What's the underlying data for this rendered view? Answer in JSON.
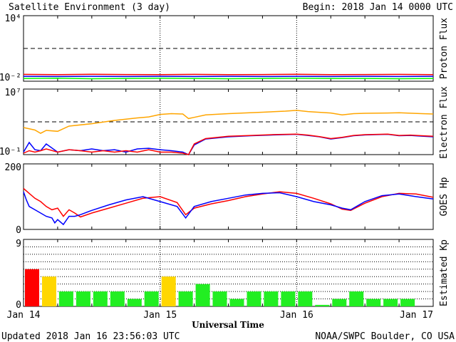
{
  "header": {
    "title": "Satellite Environment (3 day)",
    "begin": "Begin:  2018 Jan 14 0000 UTC"
  },
  "footer": {
    "updated": "Updated 2018 Jan 16 23:56:03 UTC",
    "credit": "NOAA/SWPC Boulder, CO USA"
  },
  "x_axis": {
    "label": "Universal Time",
    "ticks": [
      "Jan 14",
      "Jan 15",
      "Jan 16",
      "Jan 17"
    ],
    "days": 3,
    "tick_hours": 6
  },
  "colors": {
    "red": "#ff0000",
    "blue": "#0000ff",
    "green": "#00ff00",
    "orange": "#ffa500",
    "kp_red": "#ff0000",
    "kp_yellow": "#ffd700",
    "kp_green": "#22ee22"
  },
  "chart_data": [
    {
      "type": "line",
      "panel": "proton",
      "ylabel": "Proton Flux",
      "ytick_labels": [
        "10⁴",
        "10⁻²"
      ],
      "ylim": [
        0.01,
        10000
      ],
      "log_scale": true,
      "threshold": 10,
      "threshold_style": "dashed",
      "series": [
        {
          "color": "red",
          "x": [
            0,
            6,
            12,
            18,
            24,
            30,
            36,
            42,
            48,
            54,
            60,
            66,
            72
          ],
          "y": [
            0.042,
            0.04,
            0.043,
            0.041,
            0.04,
            0.042,
            0.04,
            0.041,
            0.043,
            0.04,
            0.041,
            0.042,
            0.04
          ]
        },
        {
          "color": "blue",
          "x": [
            0,
            6,
            12,
            18,
            24,
            30,
            36,
            42,
            48,
            54,
            60,
            66,
            72
          ],
          "y": [
            0.028,
            0.027,
            0.028,
            0.027,
            0.028,
            0.027,
            0.028,
            0.027,
            0.028,
            0.027,
            0.028,
            0.027,
            0.028
          ]
        },
        {
          "color": "green",
          "x": [
            0,
            6,
            12,
            18,
            24,
            30,
            36,
            42,
            48,
            54,
            60,
            66,
            72
          ],
          "y": [
            0.018,
            0.019,
            0.017,
            0.018,
            0.019,
            0.018,
            0.017,
            0.018,
            0.019,
            0.018,
            0.018,
            0.017,
            0.018
          ]
        }
      ]
    },
    {
      "type": "line",
      "panel": "electron",
      "ylabel": "Electron Flux",
      "ytick_labels": [
        "10⁷",
        "10⁻¹"
      ],
      "ylim": [
        0.1,
        10000000
      ],
      "log_scale": true,
      "threshold": 1000,
      "threshold_style": "dashed",
      "series": [
        {
          "color": "orange",
          "x": [
            0,
            2,
            3,
            4,
            6,
            8,
            12,
            16,
            20,
            22,
            24,
            26,
            28,
            29,
            30,
            32,
            36,
            42,
            46,
            48,
            50,
            54,
            56,
            58,
            60,
            64,
            66,
            70,
            72
          ],
          "y": [
            200,
            100,
            40,
            90,
            70,
            300,
            600,
            1500,
            3000,
            4000,
            8000,
            10000,
            9000,
            2500,
            3500,
            7000,
            10000,
            15000,
            20000,
            25000,
            18000,
            12000,
            7000,
            10000,
            11000,
            12000,
            13000,
            10000,
            9000
          ]
        },
        {
          "color": "blue",
          "x": [
            0,
            1,
            2,
            3,
            4,
            6,
            8,
            10,
            12,
            14,
            16,
            18,
            20,
            22,
            24,
            26,
            28,
            29,
            30,
            32,
            36,
            40,
            44,
            48,
            50,
            52,
            54,
            56,
            58,
            60,
            64,
            66,
            68,
            70,
            72
          ],
          "y": [
            0.2,
            3,
            0.4,
            0.3,
            2,
            0.2,
            0.4,
            0.3,
            0.5,
            0.3,
            0.4,
            0.2,
            0.5,
            0.6,
            0.4,
            0.3,
            0.2,
            0.1,
            1.5,
            8,
            15,
            20,
            25,
            30,
            22,
            15,
            8,
            12,
            20,
            25,
            30,
            20,
            22,
            18,
            15
          ]
        },
        {
          "color": "red",
          "x": [
            0,
            1,
            2,
            3,
            4,
            6,
            8,
            10,
            12,
            14,
            16,
            18,
            20,
            22,
            24,
            26,
            28,
            29,
            30,
            32,
            36,
            40,
            44,
            48,
            50,
            52,
            54,
            56,
            58,
            60,
            64,
            66,
            68,
            70,
            72
          ],
          "y": [
            0.15,
            0.3,
            0.2,
            0.3,
            0.5,
            0.2,
            0.4,
            0.3,
            0.2,
            0.3,
            0.2,
            0.3,
            0.2,
            0.4,
            0.2,
            0.2,
            0.15,
            0.1,
            2,
            9,
            17,
            22,
            28,
            32,
            24,
            16,
            9,
            13,
            22,
            27,
            32,
            22,
            24,
            20,
            17
          ]
        }
      ]
    },
    {
      "type": "line",
      "panel": "goes_hp",
      "ylabel": "GOES Hp",
      "ytick_labels": [
        "200",
        "0"
      ],
      "ylim": [
        0,
        200
      ],
      "series": [
        {
          "color": "red",
          "x": [
            0,
            1,
            2,
            3,
            4,
            5,
            6,
            7,
            8,
            9,
            10,
            12,
            15,
            18,
            21,
            24,
            27,
            28.5,
            30,
            33,
            36,
            39,
            42,
            45,
            48,
            51,
            54,
            56,
            57.5,
            60,
            63,
            66,
            69,
            72
          ],
          "y": [
            125,
            110,
            95,
            85,
            70,
            60,
            65,
            40,
            60,
            50,
            38,
            50,
            65,
            80,
            95,
            100,
            82,
            45,
            65,
            78,
            88,
            100,
            108,
            115,
            110,
            95,
            78,
            62,
            58,
            80,
            100,
            110,
            108,
            98
          ]
        },
        {
          "color": "blue",
          "x": [
            0,
            0.5,
            1,
            2,
            3,
            4,
            5,
            5.5,
            6,
            7,
            8,
            9,
            10,
            12,
            15,
            18,
            21,
            24,
            27,
            28.5,
            30,
            33,
            36,
            39,
            42,
            45,
            48,
            51,
            54,
            56,
            57.5,
            60,
            63,
            66,
            69,
            72
          ],
          "y": [
            115,
            90,
            70,
            60,
            50,
            40,
            35,
            20,
            30,
            15,
            40,
            40,
            45,
            58,
            75,
            90,
            100,
            85,
            70,
            35,
            70,
            85,
            95,
            105,
            110,
            112,
            100,
            85,
            75,
            65,
            60,
            85,
            103,
            108,
            100,
            93
          ]
        }
      ]
    },
    {
      "type": "bar",
      "panel": "kp",
      "ylabel": "Estimated Kp",
      "ytick_labels": [
        "9",
        "0"
      ],
      "ylim": [
        0,
        9
      ],
      "bar_hours": 3,
      "values": [
        5,
        4,
        2,
        2,
        2,
        2,
        1,
        2,
        4,
        2,
        3,
        2,
        1,
        2,
        2,
        2,
        2,
        0.2,
        1,
        2,
        1,
        1,
        1
      ],
      "bar_colors": [
        "red",
        "yellow",
        "green",
        "green",
        "green",
        "green",
        "green",
        "green",
        "yellow",
        "green",
        "green",
        "green",
        "green",
        "green",
        "green",
        "green",
        "green",
        "green",
        "green",
        "green",
        "green",
        "green",
        "green"
      ]
    }
  ]
}
